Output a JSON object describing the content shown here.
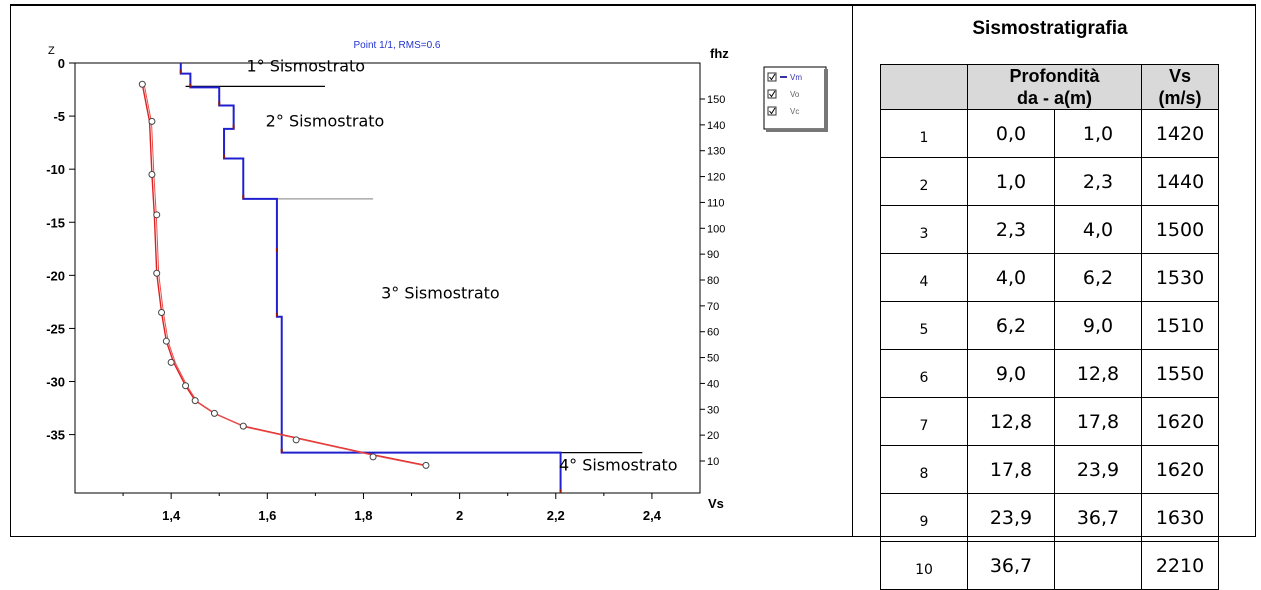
{
  "figure": {
    "plot_title": "Point 1/1, RMS=0.6",
    "left_axis_label": "Z",
    "right_axis_label": "fhz",
    "x_axis_label": "Vs",
    "legend": [
      "Vm",
      "Vo",
      "Vc"
    ]
  },
  "chart_data": {
    "type": "line",
    "title": "Point 1/1, RMS=0.6",
    "xlabel": "Vs",
    "ylabel": "Z",
    "y2label": "fhz",
    "xlim": [
      1.2,
      2.5
    ],
    "ylim": [
      -40.5,
      0
    ],
    "y2lim": [
      0,
      160
    ],
    "xticks": [
      "1,4",
      "1,6",
      "1,8",
      "2",
      "2,2",
      "2,4"
    ],
    "xtick_values": [
      1.4,
      1.6,
      1.8,
      2.0,
      2.2,
      2.4
    ],
    "yticks": [
      "0",
      "-5",
      "-10",
      "-15",
      "-20",
      "-25",
      "-30",
      "-35"
    ],
    "ytick_values": [
      0,
      -5,
      -10,
      -15,
      -20,
      -25,
      -30,
      -35
    ],
    "y2ticks": [
      "10",
      "20",
      "30",
      "40",
      "50",
      "60",
      "70",
      "80",
      "90",
      "100",
      "110",
      "120",
      "130",
      "140",
      "150"
    ],
    "y2tick_values": [
      10,
      20,
      30,
      40,
      50,
      60,
      70,
      80,
      90,
      100,
      110,
      120,
      130,
      140,
      150
    ],
    "legend_position": "top-right",
    "series": [
      {
        "name": "Vm",
        "color": "#2020d0",
        "kind": "step-profile",
        "layers": [
          [
            0,
            1.0,
            1.42
          ],
          [
            1.0,
            2.3,
            1.44
          ],
          [
            2.3,
            4.0,
            1.5
          ],
          [
            4.0,
            6.2,
            1.53
          ],
          [
            6.2,
            9.0,
            1.51
          ],
          [
            9.0,
            12.8,
            1.55
          ],
          [
            12.8,
            17.8,
            1.62
          ],
          [
            17.8,
            23.9,
            1.62
          ],
          [
            23.9,
            36.7,
            1.63
          ],
          [
            36.7,
            40.5,
            2.21
          ]
        ]
      },
      {
        "name": "Vo",
        "color": "#444444",
        "kind": "markers",
        "points": [
          [
            1.34,
            -2.0
          ],
          [
            1.36,
            -5.5
          ],
          [
            1.36,
            -10.5
          ],
          [
            1.37,
            -14.3
          ],
          [
            1.37,
            -19.8
          ],
          [
            1.38,
            -23.5
          ],
          [
            1.39,
            -26.2
          ],
          [
            1.4,
            -28.2
          ],
          [
            1.43,
            -30.4
          ],
          [
            1.45,
            -31.8
          ],
          [
            1.49,
            -33.0
          ],
          [
            1.55,
            -34.2
          ],
          [
            1.66,
            -35.5
          ],
          [
            1.82,
            -37.1
          ],
          [
            1.93,
            -37.9
          ]
        ]
      },
      {
        "name": "Vc",
        "color": "#e02020",
        "kind": "line",
        "points": [
          [
            1.34,
            -2.0
          ],
          [
            1.355,
            -5.5
          ],
          [
            1.36,
            -10.5
          ],
          [
            1.365,
            -14.3
          ],
          [
            1.37,
            -19.8
          ],
          [
            1.38,
            -23.5
          ],
          [
            1.39,
            -26.2
          ],
          [
            1.405,
            -28.2
          ],
          [
            1.43,
            -30.4
          ],
          [
            1.45,
            -31.8
          ],
          [
            1.49,
            -33.0
          ],
          [
            1.55,
            -34.2
          ],
          [
            1.66,
            -35.3
          ],
          [
            1.82,
            -36.9
          ],
          [
            1.93,
            -37.9
          ]
        ]
      }
    ],
    "annotations": [
      {
        "text": "1° Sismostrato",
        "x": 1.68,
        "y": -0.8
      },
      {
        "text": "2° Sismostrato",
        "x": 1.72,
        "y": -6.0
      },
      {
        "text": "3° Sismostrato",
        "x": 1.96,
        "y": -22.2
      },
      {
        "text": "4° Sismostrato",
        "x": 2.33,
        "y": -38.4
      }
    ],
    "boundary_lines": [
      {
        "x0": 1.43,
        "x1": 1.72,
        "y": -2.2,
        "color": "#000000"
      },
      {
        "x0": 1.55,
        "x1": 1.82,
        "y": -12.8,
        "color": "#999999"
      },
      {
        "x0": 1.82,
        "x1": 2.38,
        "y": -36.7,
        "color": "#000000"
      }
    ]
  },
  "table": {
    "title": "Sismostratigrafia",
    "header": {
      "depth": "Profondità da - a(m)",
      "depth_line1": "Profondità",
      "depth_line2": "da - a(m)",
      "vs_line1": "Vs",
      "vs_line2": "(m/s)"
    },
    "rows": [
      {
        "n": "1",
        "from": "0,0",
        "to": "1,0",
        "vs": "1420"
      },
      {
        "n": "2",
        "from": "1,0",
        "to": "2,3",
        "vs": "1440"
      },
      {
        "n": "3",
        "from": "2,3",
        "to": "4,0",
        "vs": "1500"
      },
      {
        "n": "4",
        "from": "4,0",
        "to": "6,2",
        "vs": "1530"
      },
      {
        "n": "5",
        "from": "6,2",
        "to": "9,0",
        "vs": "1510"
      },
      {
        "n": "6",
        "from": "9,0",
        "to": "12,8",
        "vs": "1550"
      },
      {
        "n": "7",
        "from": "12,8",
        "to": "17,8",
        "vs": "1620"
      },
      {
        "n": "8",
        "from": "17,8",
        "to": "23,9",
        "vs": "1620"
      },
      {
        "n": "9",
        "from": "23,9",
        "to": "36,7",
        "vs": "1630"
      },
      {
        "n": "10",
        "from": "36,7",
        "to": "",
        "vs": "2210"
      }
    ]
  }
}
